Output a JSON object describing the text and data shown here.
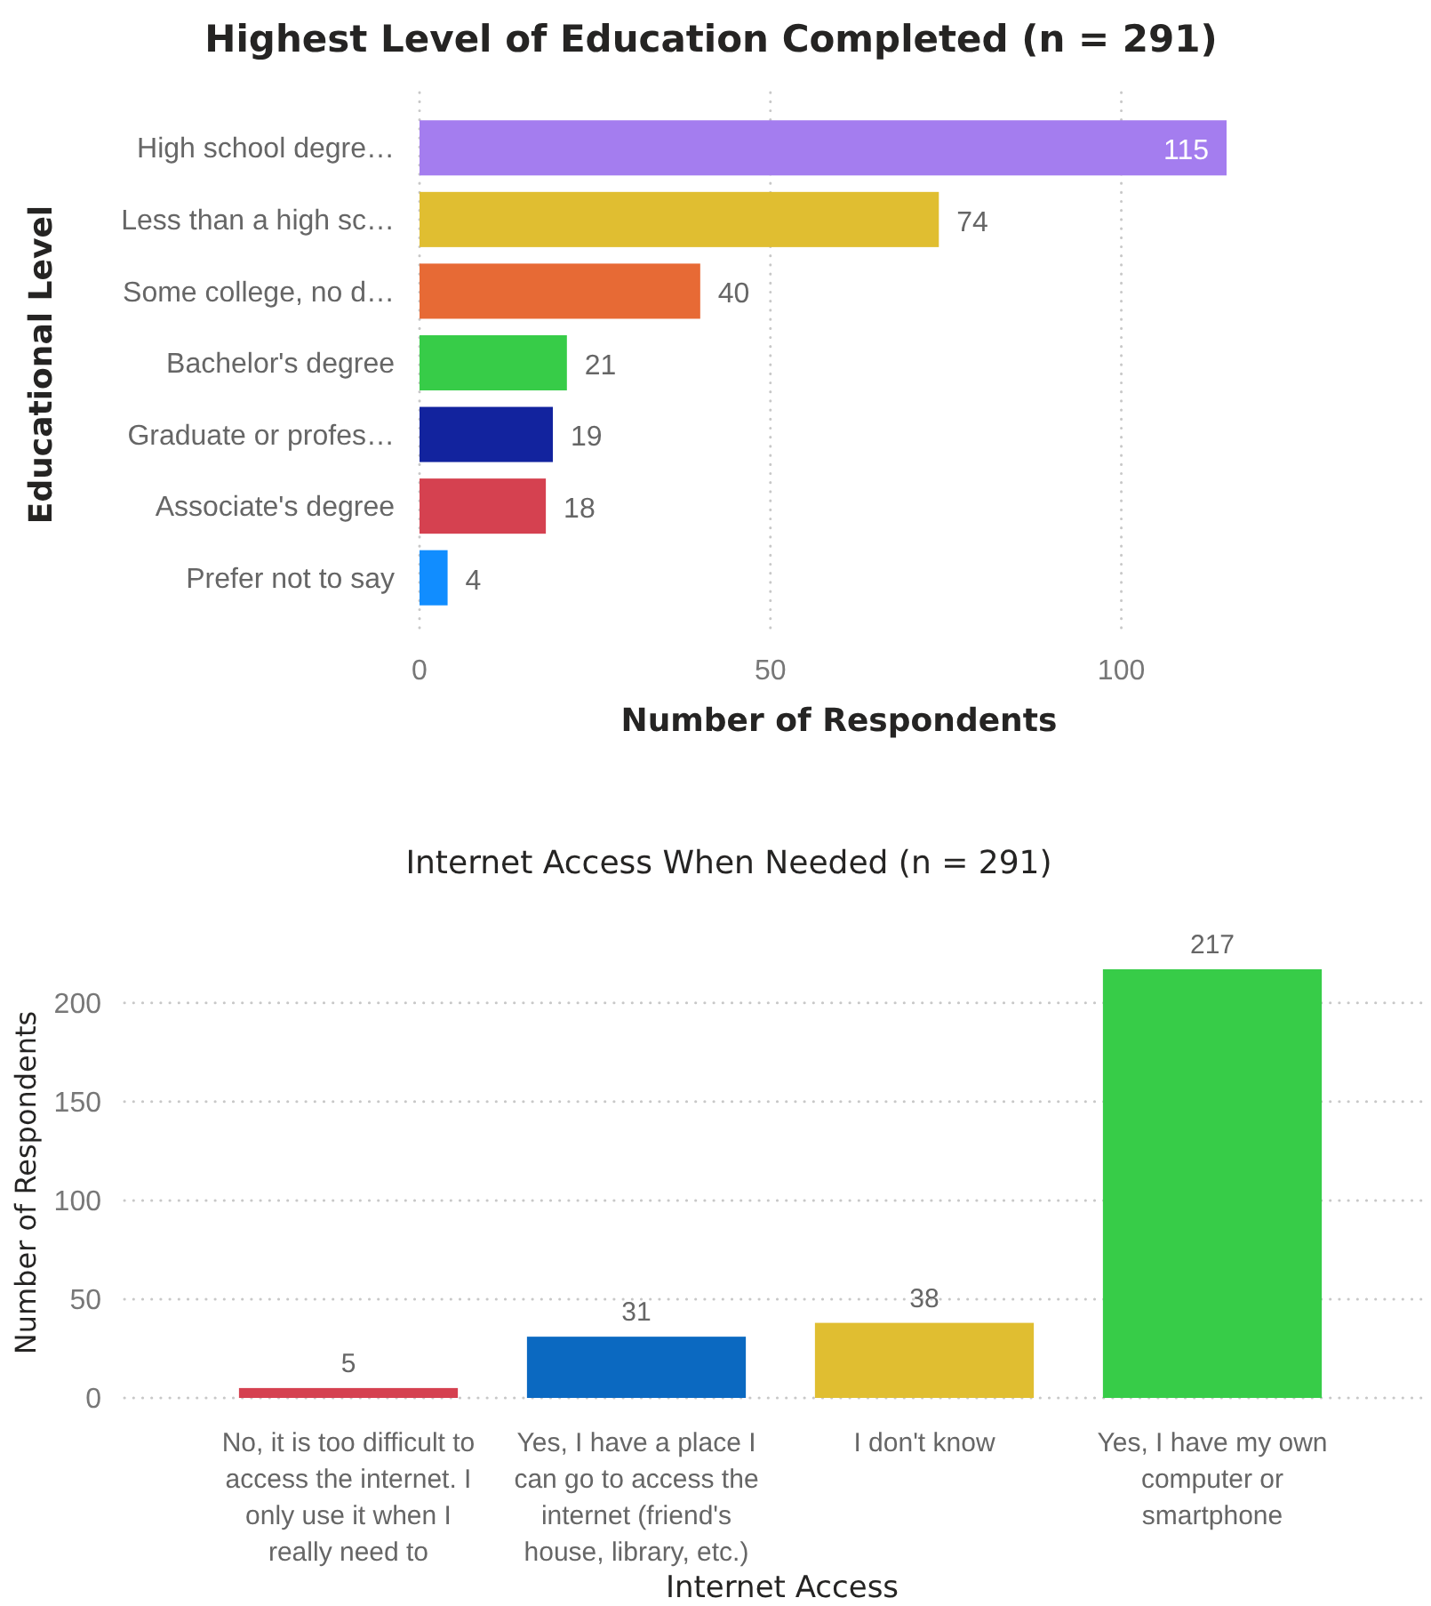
{
  "chart_data": [
    {
      "type": "bar",
      "orientation": "horizontal",
      "title": "Highest Level of Education Completed (n = 291)",
      "xlabel": "Number of Respondents",
      "ylabel": "Educational Level",
      "categories": [
        "High school degre…",
        "Less than a high sc…",
        "Some college, no d…",
        "Bachelor's degree",
        "Graduate or profes…",
        "Associate's degree",
        "Prefer not to say"
      ],
      "values": [
        115,
        74,
        40,
        21,
        19,
        18,
        4
      ],
      "colors": [
        "#a47def",
        "#e0be31",
        "#e76a35",
        "#37cc48",
        "#12239e",
        "#d54150",
        "#118dff"
      ],
      "xlim": [
        0,
        115
      ],
      "xticks": [
        0,
        50,
        100
      ],
      "grid": "x",
      "data_labels": true
    },
    {
      "type": "bar",
      "title": "Internet Access When Needed (n = 291)",
      "xlabel": "Internet Access",
      "ylabel": "Number of Respondents",
      "categories": [
        "No, it is too difficult to access the internet. I only use it when I really need to",
        "Yes, I have a place I can go to access the internet (friend's house, library, etc.)",
        "I don't know",
        "Yes, I have my own computer or smartphone"
      ],
      "values": [
        5,
        31,
        38,
        217
      ],
      "colors": [
        "#d54150",
        "#0b69c1",
        "#e0be31",
        "#37cc48"
      ],
      "ylim": [
        0,
        217
      ],
      "yticks": [
        0,
        50,
        100,
        150,
        200
      ],
      "grid": "y",
      "data_labels": true
    }
  ]
}
